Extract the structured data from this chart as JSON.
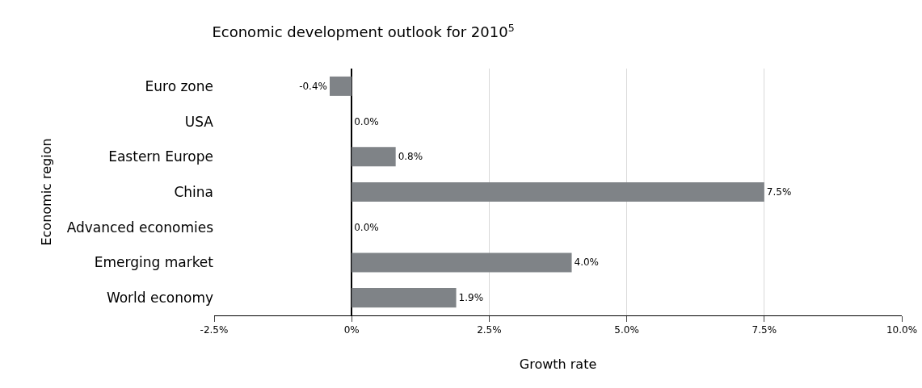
{
  "chart_data": {
    "type": "bar",
    "orientation": "horizontal",
    "title": "Economic development outlook for 2010$^{5}$",
    "xlabel": "Growth rate",
    "ylabel": "Economic region",
    "categories": [
      "Euro zone",
      "USA",
      "Eastern Europe",
      "China",
      "Advanced economies",
      "Emerging market",
      "World economy"
    ],
    "values": [
      -0.4,
      0.0,
      0.8,
      7.5,
      0.0,
      4.0,
      1.9
    ],
    "value_labels": [
      "-0.4%",
      "0.0%",
      "0.8%",
      "7.5%",
      "0.0%",
      "4.0%",
      "1.9%"
    ],
    "color": "#7f8387",
    "xlim": [
      -2.5,
      10
    ],
    "xticks": [
      {
        "value": -2.5,
        "label": "-2.5%"
      },
      {
        "value": 0,
        "label": "0%"
      },
      {
        "value": 2.5,
        "label": "2.5%"
      },
      {
        "value": 5,
        "label": "5.0%"
      },
      {
        "value": 7.5,
        "label": "7.5%"
      },
      {
        "value": 10,
        "label": "10.0%"
      }
    ],
    "grid": "x"
  }
}
